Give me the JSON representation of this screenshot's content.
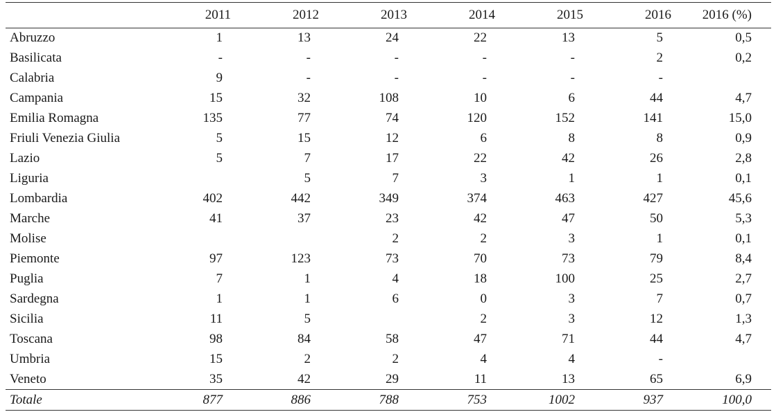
{
  "table": {
    "headers": [
      "",
      "2011",
      "2012",
      "2013",
      "2014",
      "2015",
      "2016",
      "2016 (%)"
    ],
    "rows": [
      {
        "region": "Abruzzo",
        "values": [
          "1",
          "13",
          "24",
          "22",
          "13",
          "5",
          "0,5"
        ]
      },
      {
        "region": "Basilicata",
        "values": [
          "-",
          "-",
          "-",
          "-",
          "-",
          "2",
          "0,2"
        ]
      },
      {
        "region": "Calabria",
        "values": [
          "9",
          "-",
          "-",
          "-",
          "-",
          "-",
          ""
        ]
      },
      {
        "region": "Campania",
        "values": [
          "15",
          "32",
          "108",
          "10",
          "6",
          "44",
          "4,7"
        ]
      },
      {
        "region": "Emilia Romagna",
        "values": [
          "135",
          "77",
          "74",
          "120",
          "152",
          "141",
          "15,0"
        ]
      },
      {
        "region": "Friuli Venezia Giulia",
        "values": [
          "5",
          "15",
          "12",
          "6",
          "8",
          "8",
          "0,9"
        ]
      },
      {
        "region": "Lazio",
        "values": [
          "5",
          "7",
          "17",
          "22",
          "42",
          "26",
          "2,8"
        ]
      },
      {
        "region": "Liguria",
        "values": [
          "",
          "5",
          "7",
          "3",
          "1",
          "1",
          "0,1"
        ]
      },
      {
        "region": "Lombardia",
        "values": [
          "402",
          "442",
          "349",
          "374",
          "463",
          "427",
          "45,6"
        ]
      },
      {
        "region": "Marche",
        "values": [
          "41",
          "37",
          "23",
          "42",
          "47",
          "50",
          "5,3"
        ]
      },
      {
        "region": "Molise",
        "values": [
          "",
          "",
          "2",
          "2",
          "3",
          "1",
          "0,1"
        ]
      },
      {
        "region": "Piemonte",
        "values": [
          "97",
          "123",
          "73",
          "70",
          "73",
          "79",
          "8,4"
        ]
      },
      {
        "region": "Puglia",
        "values": [
          "7",
          "1",
          "4",
          "18",
          "100",
          "25",
          "2,7"
        ]
      },
      {
        "region": "Sardegna",
        "values": [
          "1",
          "1",
          "6",
          "0",
          "3",
          "7",
          "0,7"
        ]
      },
      {
        "region": "Sicilia",
        "values": [
          "11",
          "5",
          "",
          "2",
          "3",
          "12",
          "1,3"
        ]
      },
      {
        "region": "Toscana",
        "values": [
          "98",
          "84",
          "58",
          "47",
          "71",
          "44",
          "4,7"
        ]
      },
      {
        "region": "Umbria",
        "values": [
          "15",
          "2",
          "2",
          "4",
          "4",
          "-",
          ""
        ]
      },
      {
        "region": "Veneto",
        "values": [
          "35",
          "42",
          "29",
          "11",
          "13",
          "65",
          "6,9"
        ]
      }
    ],
    "total": {
      "region": "Totale",
      "values": [
        "877",
        "886",
        "788",
        "753",
        "1002",
        "937",
        "100,0"
      ]
    }
  }
}
